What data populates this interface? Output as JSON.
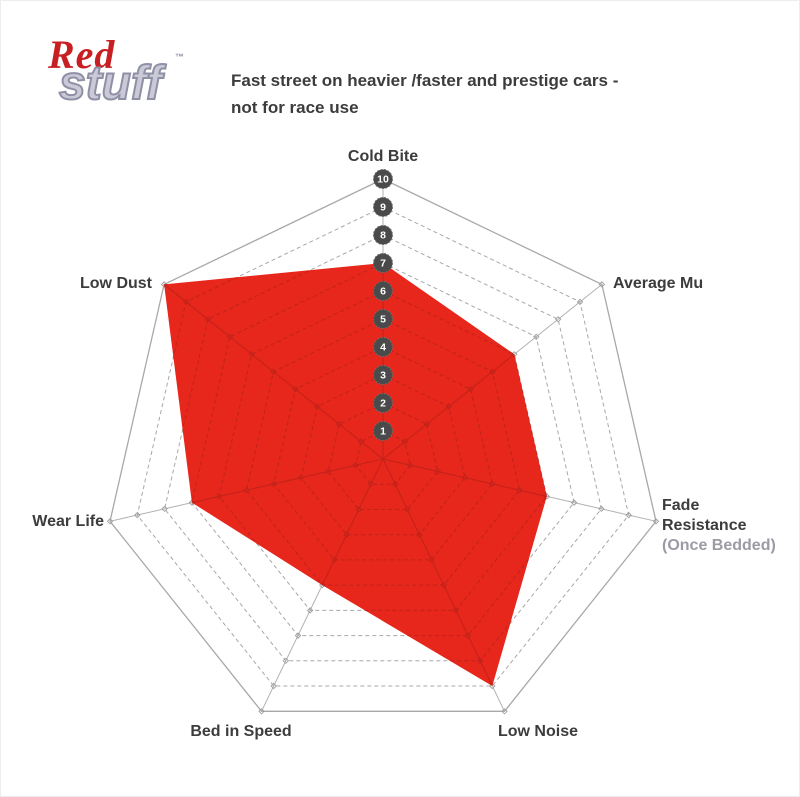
{
  "logo": {
    "brand_top": "Red",
    "brand_bottom": "stuff",
    "trademark": "™"
  },
  "header": {
    "description_lines": [
      "Fast street on heavier /faster and prestige cars -",
      "not for race use"
    ]
  },
  "chart_data": {
    "type": "radar",
    "title": "RedStuff brake pad performance profile",
    "categories": [
      "Cold Bite",
      "Average Mu",
      "Fade Resistance (Once Bedded)",
      "Low Noise",
      "Bed in Speed",
      "Wear Life",
      "Low Dust"
    ],
    "values": [
      7,
      6,
      6,
      9,
      5,
      7,
      10
    ],
    "scale": {
      "min": 0,
      "max": 10,
      "ticks": [
        1,
        2,
        3,
        4,
        5,
        6,
        7,
        8,
        9,
        10
      ]
    },
    "grid": "dashed-rings-with-solid-spokes",
    "legend": "none",
    "axis_labels": [
      {
        "lines": [
          "Cold Bite"
        ]
      },
      {
        "lines": [
          "Average Mu"
        ]
      },
      {
        "lines": [
          "Fade",
          "Resistance",
          "(Once Bedded)"
        ]
      },
      {
        "lines": [
          "Low Noise"
        ]
      },
      {
        "lines": [
          "Bed in Speed"
        ]
      },
      {
        "lines": [
          "Wear Life"
        ]
      },
      {
        "lines": [
          "Low Dust"
        ]
      }
    ],
    "colors": {
      "fill": "#e7261c",
      "inner_grid": "#c0231a",
      "ring": "#a8a8a8",
      "spoke": "#b1b1b1",
      "marker": "#9e9e9e",
      "badge": "#4a4a4a",
      "badge_text": "#ffffff",
      "label": "#3c3c3c",
      "sub_label": "#9b9ba4",
      "logo_red": "#c81f23",
      "logo_silver": "#c9c9d7"
    }
  }
}
